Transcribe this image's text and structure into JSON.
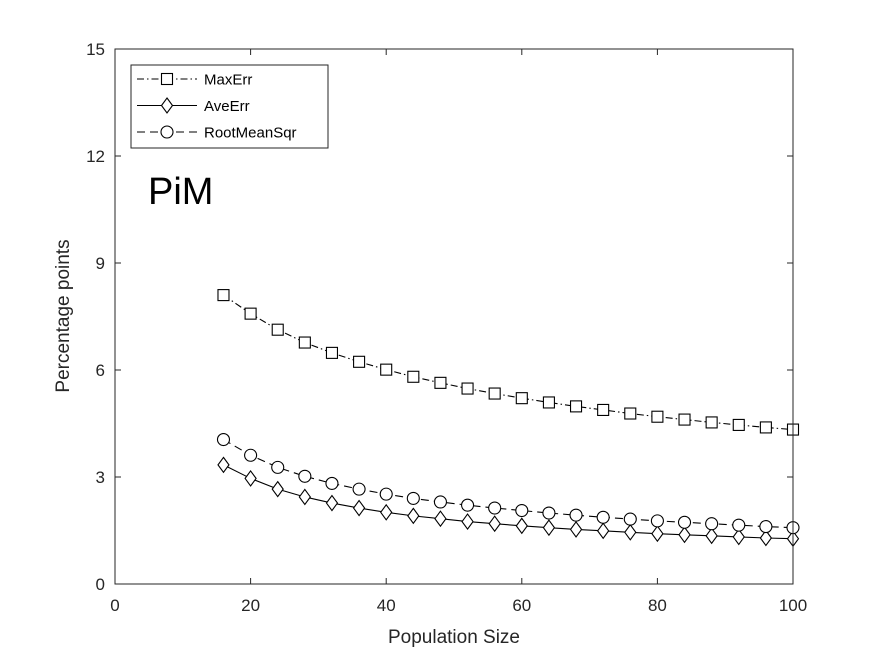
{
  "chart_data": {
    "type": "line",
    "title": "",
    "annotation": "PiM",
    "xlabel": "Population Size",
    "ylabel": "Percentage points",
    "xlim": [
      0,
      100
    ],
    "ylim": [
      0,
      15
    ],
    "xticks": [
      0,
      20,
      40,
      60,
      80,
      100
    ],
    "yticks": [
      0,
      3,
      6,
      9,
      12,
      15
    ],
    "grid": false,
    "legend_position": "top-left",
    "x": [
      16,
      20,
      24,
      28,
      32,
      36,
      40,
      44,
      48,
      52,
      56,
      60,
      64,
      68,
      72,
      76,
      80,
      84,
      88,
      92,
      96,
      100
    ],
    "series": [
      {
        "name": "MaxErr",
        "marker": "square",
        "linestyle": "dash-dot",
        "color": "#000000",
        "values": [
          8.1,
          7.58,
          7.13,
          6.77,
          6.48,
          6.23,
          6.01,
          5.81,
          5.64,
          5.48,
          5.34,
          5.21,
          5.09,
          4.98,
          4.88,
          4.78,
          4.69,
          4.61,
          4.53,
          4.46,
          4.39,
          4.33
        ]
      },
      {
        "name": "AveErr",
        "marker": "diamond",
        "linestyle": "solid",
        "color": "#000000",
        "values": [
          3.34,
          2.96,
          2.66,
          2.44,
          2.27,
          2.13,
          2.01,
          1.91,
          1.83,
          1.75,
          1.69,
          1.63,
          1.58,
          1.53,
          1.49,
          1.45,
          1.41,
          1.38,
          1.35,
          1.32,
          1.29,
          1.27
        ]
      },
      {
        "name": "RootMeanSqr",
        "marker": "circle",
        "linestyle": "dashed",
        "color": "#000000",
        "values": [
          4.05,
          3.61,
          3.27,
          3.02,
          2.82,
          2.66,
          2.52,
          2.4,
          2.3,
          2.21,
          2.13,
          2.06,
          1.99,
          1.93,
          1.87,
          1.82,
          1.77,
          1.73,
          1.69,
          1.65,
          1.61,
          1.58
        ]
      }
    ]
  }
}
